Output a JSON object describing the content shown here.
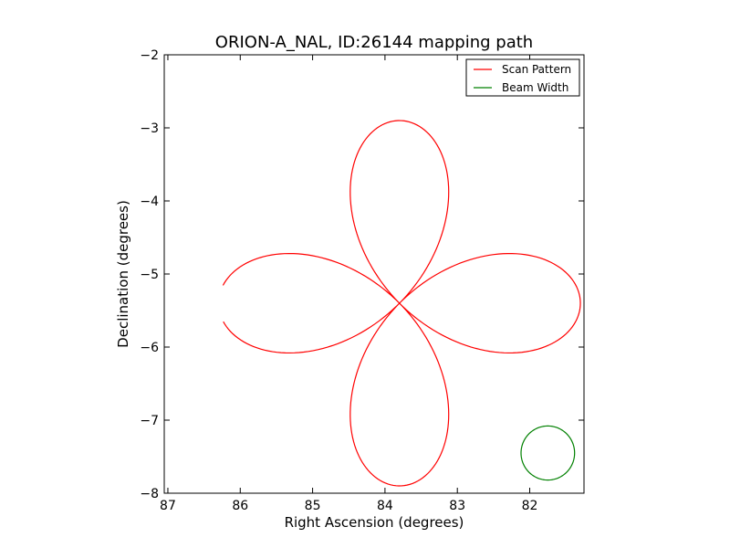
{
  "chart_data": {
    "type": "line",
    "title": "ORION-A_NAL, ID:26144 mapping path",
    "xlabel": "Right Ascension (degrees)",
    "ylabel": "Declination (degrees)",
    "xlim": [
      87.05,
      81.25
    ],
    "ylim": [
      -8,
      -2
    ],
    "x_inverted": true,
    "xticks": [
      87,
      86,
      85,
      84,
      83,
      82
    ],
    "xtick_labels": [
      "87",
      "86",
      "85",
      "84",
      "83",
      "82"
    ],
    "yticks": [
      -8,
      -7,
      -6,
      -5,
      -4,
      -3,
      -2
    ],
    "ytick_labels": [
      "−8",
      "−7",
      "−6",
      "−5",
      "−4",
      "−3",
      "−2"
    ],
    "grid": false,
    "legend_position": "top-right",
    "series": [
      {
        "name": "Scan Pattern",
        "color": "#ff0000",
        "shape": "four-petal rose",
        "center": [
          83.8,
          -5.4
        ],
        "ra_amplitude": 2.5,
        "dec_amplitude": 2.5,
        "rose_k": 2,
        "start_angle_rad": 0.1,
        "end_angle_rad": 6.18
      },
      {
        "name": "Beam Width",
        "color": "#008000",
        "shape": "circle",
        "center": [
          81.75,
          -7.45
        ],
        "radius_ra": 0.37,
        "radius_dec": 0.37
      }
    ]
  }
}
